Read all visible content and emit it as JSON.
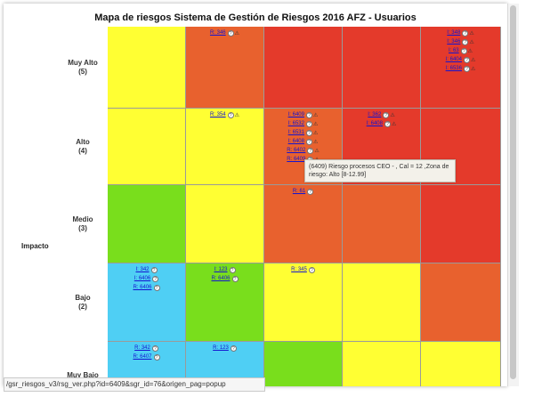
{
  "title": "Mapa de riesgos Sistema de Gestión de Riesgos 2016 AFZ - Usuarios",
  "y_axis_label": "Impacto",
  "row_labels": [
    {
      "label": "Muy Alto",
      "num": "(5)"
    },
    {
      "label": "Alto",
      "num": "(4)"
    },
    {
      "label": "Medio",
      "num": "(3)"
    },
    {
      "label": "Bajo",
      "num": "(2)"
    },
    {
      "label": "Muy Bajo",
      "num": ""
    }
  ],
  "colors": {
    "yellow": "#ffff33",
    "orange": "#e8612e",
    "red": "#e43a2b",
    "green": "#79de1c",
    "blue": "#4fcff4"
  },
  "grid": [
    [
      {
        "color": "yellow",
        "links": []
      },
      {
        "color": "orange",
        "links": [
          "R: 346"
        ]
      },
      {
        "color": "red",
        "links": []
      },
      {
        "color": "red",
        "links": []
      },
      {
        "color": "red",
        "links": [
          "I: 348",
          "I: 346",
          "I: 63",
          "I: 6404",
          "I: 6536"
        ]
      }
    ],
    [
      {
        "color": "yellow",
        "links": []
      },
      {
        "color": "yellow",
        "links": [
          "R: 354"
        ]
      },
      {
        "color": "orange",
        "links": [
          "I: 6409",
          "I: 6532",
          "I: 6531",
          "I: 6408",
          "R: 6402",
          "R: 6409"
        ]
      },
      {
        "color": "red",
        "links": [
          "I: 362",
          "I: 6408"
        ]
      },
      {
        "color": "red",
        "links": []
      }
    ],
    [
      {
        "color": "green",
        "links": []
      },
      {
        "color": "yellow",
        "links": []
      },
      {
        "color": "orange",
        "links": [
          "R: 61"
        ]
      },
      {
        "color": "orange",
        "links": []
      },
      {
        "color": "red",
        "links": []
      }
    ],
    [
      {
        "color": "blue",
        "links": [
          "I: 342",
          "I: 6406",
          "R: 6406"
        ]
      },
      {
        "color": "green",
        "links": [
          "I: 123",
          "R: 6406"
        ]
      },
      {
        "color": "yellow",
        "links": [
          "R: 345"
        ]
      },
      {
        "color": "yellow",
        "links": []
      },
      {
        "color": "orange",
        "links": []
      }
    ],
    [
      {
        "color": "blue",
        "links": [
          "R: 342",
          "R: 6407"
        ]
      },
      {
        "color": "blue",
        "links": [
          "R: 123"
        ]
      },
      {
        "color": "green",
        "links": []
      },
      {
        "color": "yellow",
        "links": []
      },
      {
        "color": "yellow",
        "links": []
      }
    ]
  ],
  "tooltip": "(6409) Riesgo procesos CEO - , Cal = 12 ,Zona de riesgo: Alto [8-12.99]",
  "status_url": "/gsr_riesgos_v3/rsg_ver.php?id=6409&sgr_id=76&origen_pag=popup"
}
